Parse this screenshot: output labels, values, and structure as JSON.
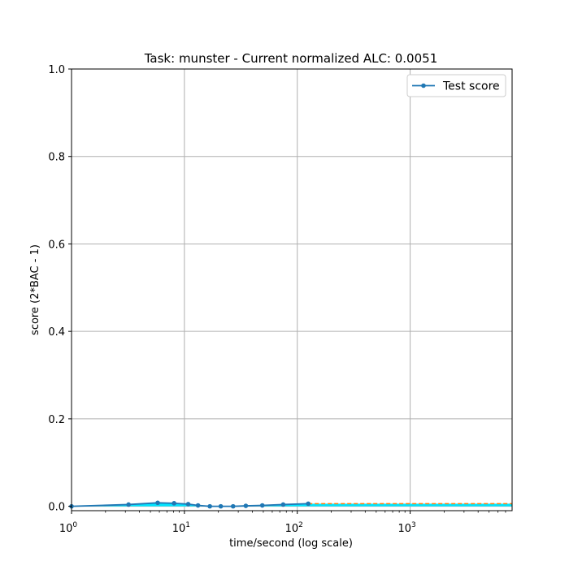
{
  "chart_data": {
    "type": "line",
    "title": "Task: munster - Current normalized ALC: 0.0051",
    "xlabel": "time/second (log scale)",
    "ylabel": "score (2*BAC - 1)",
    "xscale": "log",
    "xlim": [
      1,
      8000
    ],
    "ylim": [
      -0.01,
      1.0
    ],
    "x_ticks": [
      {
        "value": 1,
        "base": "10",
        "exp": "0"
      },
      {
        "value": 10,
        "base": "10",
        "exp": "1"
      },
      {
        "value": 100,
        "base": "10",
        "exp": "2"
      },
      {
        "value": 1000,
        "base": "10",
        "exp": "3"
      }
    ],
    "y_ticks": [
      {
        "value": 0.0,
        "label": "0.0"
      },
      {
        "value": 0.2,
        "label": "0.2"
      },
      {
        "value": 0.4,
        "label": "0.4"
      },
      {
        "value": 0.6,
        "label": "0.6"
      },
      {
        "value": 0.8,
        "label": "0.8"
      },
      {
        "value": 1.0,
        "label": "1.0"
      }
    ],
    "grid": true,
    "legend_position": "top-right",
    "series": [
      {
        "name": "Test score",
        "color": "#1f77b4",
        "x": [
          1.0,
          3.2,
          5.8,
          8.1,
          10.8,
          13.2,
          16.8,
          21.0,
          27.0,
          35.0,
          49.0,
          75.0,
          125.0
        ],
        "y": [
          0.0,
          0.004,
          0.008,
          0.007,
          0.005,
          0.002,
          0.0,
          0.0,
          0.0,
          0.001,
          0.002,
          0.004,
          0.006
        ]
      }
    ],
    "fill": {
      "color": "#00e5ff",
      "y_final": 0.006,
      "x_end": 8000
    },
    "extension_line": {
      "color": "#ff7f0e",
      "style": "dashed",
      "y": 0.006
    }
  }
}
